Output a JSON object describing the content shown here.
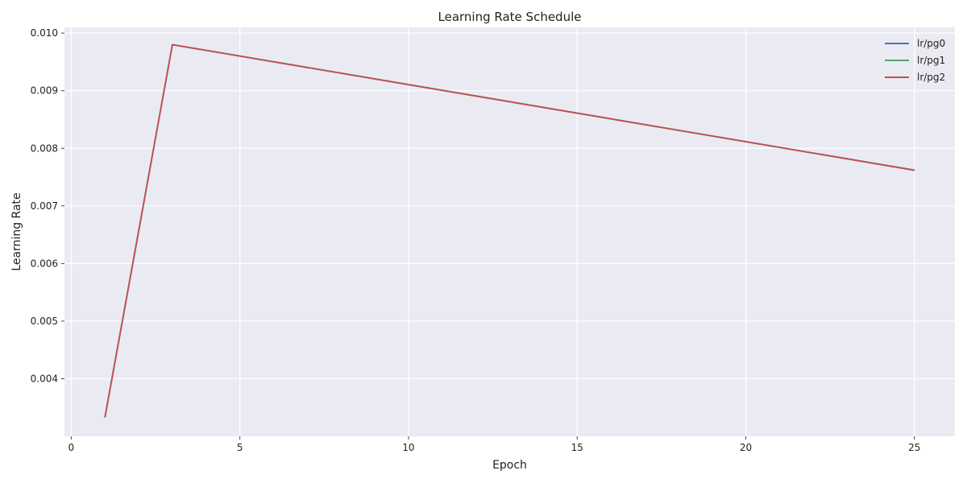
{
  "chart_data": {
    "type": "line",
    "title": "Learning Rate Schedule",
    "xlabel": "Epoch",
    "ylabel": "Learning Rate",
    "x": [
      1,
      3,
      25
    ],
    "series": [
      {
        "name": "lr/pg0",
        "color": "#4c72b0",
        "values": [
          0.00333,
          0.0098,
          0.00762
        ]
      },
      {
        "name": "lr/pg1",
        "color": "#55a868",
        "values": [
          0.00333,
          0.0098,
          0.00762
        ]
      },
      {
        "name": "lr/pg2",
        "color": "#c44e52",
        "values": [
          0.00333,
          0.0098,
          0.00762
        ]
      }
    ],
    "xlim": [
      -0.2,
      26.2
    ],
    "ylim": [
      0.003,
      0.0101
    ],
    "xticks": [
      0,
      5,
      10,
      15,
      20,
      25
    ],
    "xtick_labels": [
      "0",
      "5",
      "10",
      "15",
      "20",
      "25"
    ],
    "yticks": [
      0.004,
      0.005,
      0.006,
      0.007,
      0.008,
      0.009,
      0.01
    ],
    "ytick_labels": [
      "0.004",
      "0.005",
      "0.006",
      "0.007",
      "0.008",
      "0.009",
      "0.010"
    ],
    "grid": true,
    "legend_position": "top-right",
    "background_color": "#eaeaf2",
    "grid_color": "#ffffff"
  }
}
